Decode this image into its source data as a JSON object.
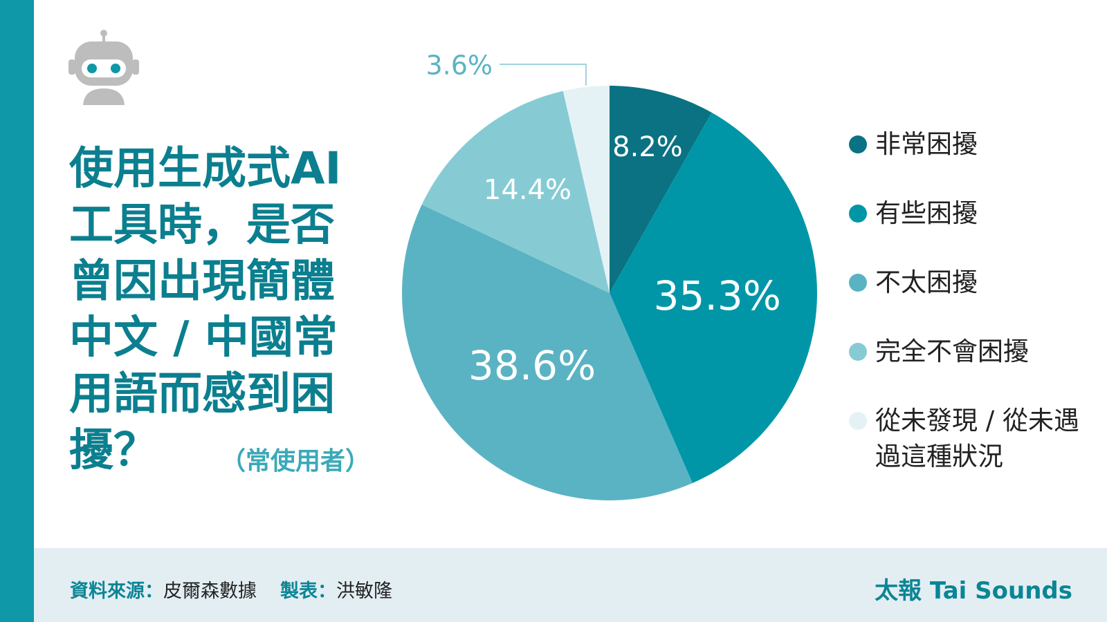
{
  "chart_data": {
    "type": "pie",
    "title": [
      "使用生成式AI",
      "工具時，是否",
      "曾因出現簡體",
      "中文 / 中國常",
      "用語而感到困",
      "擾？"
    ],
    "subtitle": "（常使用者）",
    "categories": [
      "非常困擾",
      "有些困擾",
      "不太困擾",
      "完全不會困擾",
      "從未發現 / 從未遇過這種狀況"
    ],
    "values": [
      8.2,
      35.3,
      38.6,
      14.4,
      3.6
    ],
    "value_labels": [
      "8.2%",
      "35.3%",
      "38.6%",
      "14.4%",
      "3.6%"
    ],
    "colors": [
      "#0a7282",
      "#0096a8",
      "#5ab3c3",
      "#86cbd4",
      "#e4f2f6"
    ]
  },
  "footer": {
    "source_label": "資料來源：",
    "source": "皮爾森數據",
    "maker_label": "製表：",
    "maker": "洪敏隆",
    "brand": "太報 Tai Sounds"
  }
}
